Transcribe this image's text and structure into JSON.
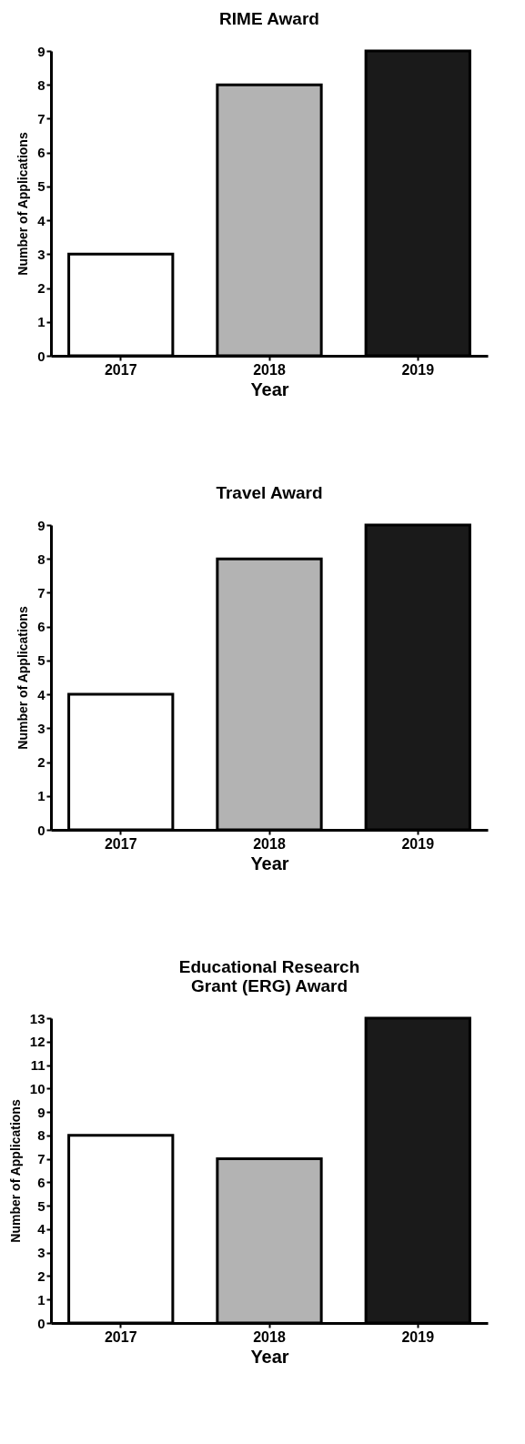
{
  "chart_data": [
    {
      "type": "bar",
      "title": "RIME Award",
      "xlabel": "Year",
      "ylabel": "Number of Applications",
      "categories": [
        "2017",
        "2018",
        "2019"
      ],
      "values": [
        3,
        8,
        9
      ],
      "colors": [
        "#ffffff",
        "#b3b3b3",
        "#1a1a1a"
      ],
      "ylim": [
        0,
        9
      ],
      "yticks": [
        0,
        1,
        2,
        3,
        4,
        5,
        6,
        7,
        8,
        9
      ]
    },
    {
      "type": "bar",
      "title": "Travel Award",
      "xlabel": "Year",
      "ylabel": "Number of Applications",
      "categories": [
        "2017",
        "2018",
        "2019"
      ],
      "values": [
        4,
        8,
        9
      ],
      "colors": [
        "#ffffff",
        "#b3b3b3",
        "#1a1a1a"
      ],
      "ylim": [
        0,
        9
      ],
      "yticks": [
        0,
        1,
        2,
        3,
        4,
        5,
        6,
        7,
        8,
        9
      ]
    },
    {
      "type": "bar",
      "title": "Educational Research\nGrant (ERG) Award",
      "xlabel": "Year",
      "ylabel": "Number of Applications",
      "categories": [
        "2017",
        "2018",
        "2019"
      ],
      "values": [
        8,
        7,
        13
      ],
      "colors": [
        "#ffffff",
        "#b3b3b3",
        "#1a1a1a"
      ],
      "ylim": [
        0,
        13
      ],
      "yticks": [
        0,
        1,
        2,
        3,
        4,
        5,
        6,
        7,
        8,
        9,
        10,
        11,
        12,
        13
      ]
    }
  ]
}
